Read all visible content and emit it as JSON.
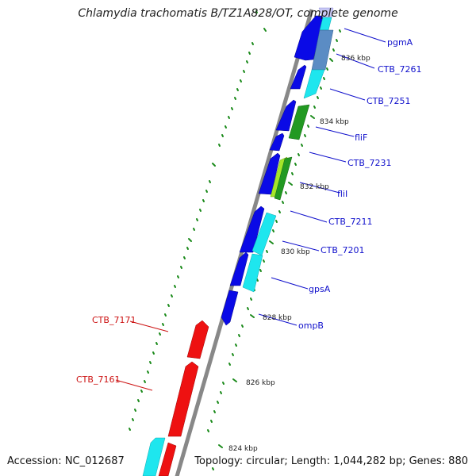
{
  "title": "Chlamydia trachomatis B/TZ1A828/OT, complete genome",
  "accession": "Accession: NC_012687",
  "topology": "Topology: circular; Length: 1,044,282 bp; Genes: 880",
  "ruler_labels": [
    "836 kbp",
    "834 kbp",
    "832 kbp",
    "830 kbp",
    "828 kbp",
    "826 kbp",
    "824 kbp"
  ],
  "gene_labels": {
    "pgmA": "pgmA",
    "CTB_7261": "CTB_7261",
    "CTB_7251": "CTB_7251",
    "fliF": "fliF",
    "CTB_7231": "CTB_7231",
    "fliI": "fliI",
    "CTB_7211": "CTB_7211",
    "CTB_7201": "CTB_7201",
    "gpsA": "gpsA",
    "ompB": "ompB",
    "CTB_7171": "CTB_7171",
    "CTB_7161": "CTB_7161"
  },
  "colors": {
    "forward_label": "#1010cc",
    "reverse_label": "#cc1111",
    "blue": "#0a0ae6",
    "cyan": "#1ee6ee",
    "red": "#ee1111",
    "green": "#229922",
    "lime": "#a4e62a",
    "steel": "#5b8cc4",
    "lavender": "#c8c8f4",
    "backbone": "#888888",
    "ticks": "#1a8a1a"
  }
}
